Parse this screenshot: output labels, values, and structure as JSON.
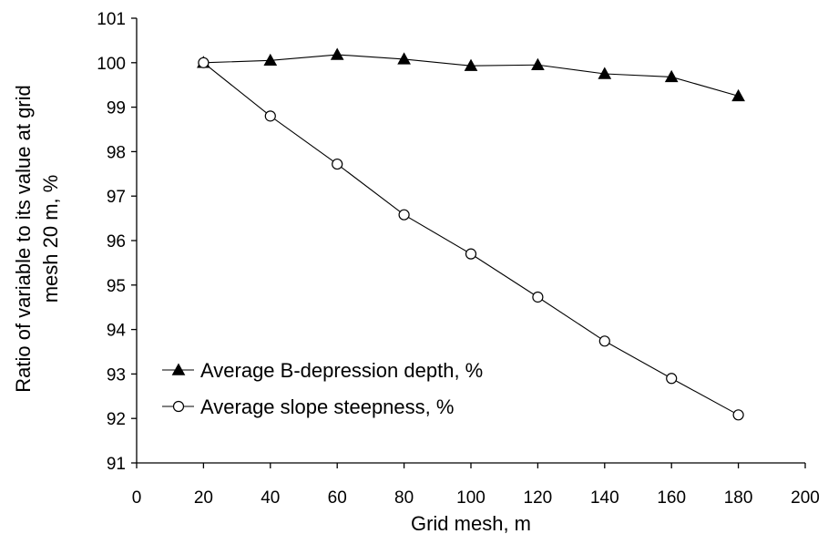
{
  "chart_data": {
    "type": "line",
    "title": "",
    "xlabel": "Grid mesh, m",
    "ylabel_lines": [
      "Ratio of variable to its value at grid",
      "mesh 20 m, %"
    ],
    "xlim": [
      0,
      200
    ],
    "ylim": [
      91,
      101
    ],
    "x_ticks": [
      0,
      20,
      40,
      60,
      80,
      100,
      120,
      140,
      160,
      180,
      200
    ],
    "y_ticks": [
      91,
      92,
      93,
      94,
      95,
      96,
      97,
      98,
      99,
      100,
      101
    ],
    "grid": false,
    "legend_position": "lower-left",
    "x": [
      20,
      40,
      60,
      80,
      100,
      120,
      140,
      160,
      180
    ],
    "series": [
      {
        "name": "Average B-depression depth, %",
        "marker": "filled-triangle",
        "color": "#000000",
        "values": [
          100.0,
          100.05,
          100.18,
          100.08,
          99.93,
          99.95,
          99.75,
          99.68,
          99.25
        ]
      },
      {
        "name": "Average slope steepness, %",
        "marker": "open-circle",
        "color": "#000000",
        "values": [
          100.0,
          98.8,
          97.72,
          96.58,
          95.7,
          94.73,
          93.74,
          92.9,
          92.08
        ]
      }
    ]
  }
}
